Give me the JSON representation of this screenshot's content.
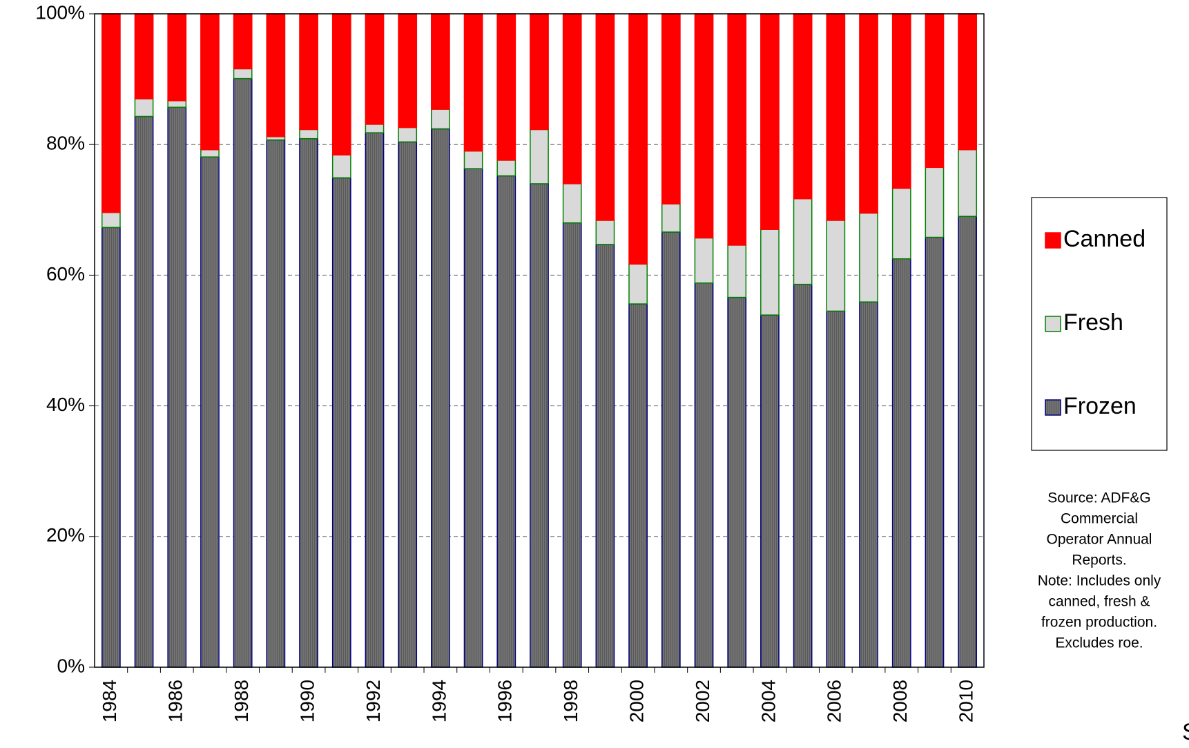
{
  "chart_data": {
    "type": "stacked_bar",
    "categories": [
      "1984",
      null,
      "1986",
      null,
      "1988",
      null,
      "1990",
      null,
      "1992",
      null,
      "1994",
      null,
      "1996",
      null,
      "1998",
      null,
      "2000",
      null,
      "2002",
      null,
      "2004",
      null,
      "2006",
      null,
      "2008",
      null,
      "2010"
    ],
    "series": [
      {
        "name": "Canned",
        "color": "#ff0000",
        "stroke": "#ff0000",
        "values": [
          30.4,
          13.0,
          13.3,
          20.8,
          8.4,
          18.8,
          17.7,
          21.6,
          16.9,
          17.4,
          14.6,
          21.0,
          22.4,
          17.7,
          26.0,
          31.6,
          38.3,
          29.1,
          34.3,
          35.4,
          33.0,
          28.3,
          31.6,
          30.5,
          26.7,
          23.5,
          20.8
        ]
      },
      {
        "name": "Fresh",
        "color": "#d9d9d9",
        "stroke": "#008000",
        "values": [
          2.3,
          2.7,
          1.0,
          1.1,
          1.5,
          0.5,
          1.4,
          3.5,
          1.3,
          2.2,
          3.0,
          2.7,
          2.4,
          8.3,
          6.0,
          3.7,
          6.1,
          4.3,
          6.9,
          8.0,
          13.1,
          13.1,
          13.9,
          13.6,
          10.8,
          10.7,
          10.2
        ]
      },
      {
        "name": "Frozen",
        "color": "#5a5a5a",
        "stroke": "#000080",
        "values": [
          67.3,
          84.3,
          85.7,
          78.1,
          90.1,
          80.7,
          80.9,
          74.9,
          81.8,
          80.4,
          82.4,
          76.3,
          75.2,
          74.0,
          68.0,
          64.7,
          55.6,
          66.6,
          58.8,
          56.6,
          53.9,
          58.6,
          54.5,
          55.9,
          62.5,
          65.8,
          69.0
        ]
      }
    ],
    "ylim": [
      0,
      100
    ],
    "yticks": [
      {
        "value": 0,
        "label": "0%"
      },
      {
        "value": 20,
        "label": "20%"
      },
      {
        "value": 40,
        "label": "40%"
      },
      {
        "value": 60,
        "label": "60%"
      },
      {
        "value": 80,
        "label": "80%"
      },
      {
        "value": 100,
        "label": "100%"
      }
    ],
    "grid": true,
    "legend": "right",
    "annotation": [
      "Source:  ADF&G",
      "Commercial",
      "Operator Annual",
      "Reports.",
      "Note:  Includes only",
      "canned, fresh &",
      "frozen production.",
      "Excludes roe."
    ],
    "footer": "S"
  }
}
